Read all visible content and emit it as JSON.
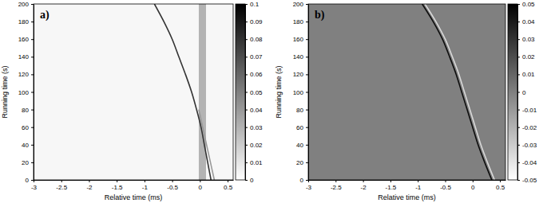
{
  "chart_data": [
    {
      "type": "heatmap",
      "title": "a)",
      "xlabel": "Relative time (ms)",
      "ylabel": "Running time (s)",
      "xlim": [
        -3,
        0.6
      ],
      "xticks": [
        -3,
        -2.5,
        -2,
        -1.5,
        -1,
        -0.5,
        0,
        0.5
      ],
      "ylim": [
        0,
        200
      ],
      "yticks": [
        0,
        20,
        40,
        60,
        80,
        100,
        120,
        140,
        160,
        180,
        200
      ],
      "colorbar": {
        "lim": [
          0,
          0.1
        ],
        "ticks": [
          0,
          0.01,
          0.02,
          0.03,
          0.04,
          0.05,
          0.06,
          0.07,
          0.08,
          0.09,
          0.1
        ]
      },
      "background": 0.003,
      "bands": [
        {
          "x": [
            -0.02,
            0.11
          ],
          "value": 0.03
        }
      ],
      "traces": [
        {
          "y": [
            0,
            20,
            40,
            60,
            80,
            100,
            120,
            140,
            160,
            180,
            200
          ],
          "x": [
            0.2,
            0.14,
            0.08,
            0.02,
            -0.06,
            -0.15,
            -0.26,
            -0.38,
            -0.5,
            -0.65,
            -0.82
          ],
          "value": 0.08
        },
        {
          "y": [
            0,
            20,
            40,
            60,
            80
          ],
          "x": [
            0.26,
            0.19,
            0.12,
            0.05,
            -0.02
          ],
          "value": 0.04
        }
      ]
    },
    {
      "type": "heatmap",
      "title": "b)",
      "xlabel": "Relative time (ms)",
      "ylabel": "Running time (s)",
      "xlim": [
        -3,
        0.6
      ],
      "xticks": [
        -3,
        -2.5,
        -2,
        -1.5,
        -1,
        -0.5,
        0,
        0.5
      ],
      "ylim": [
        0,
        200
      ],
      "yticks": [
        0,
        20,
        40,
        60,
        80,
        100,
        120,
        140,
        160,
        180,
        200
      ],
      "colorbar": {
        "lim": [
          -0.05,
          0.05
        ],
        "ticks": [
          -0.05,
          -0.04,
          -0.03,
          -0.02,
          -0.01,
          0,
          0.01,
          0.02,
          0.03,
          0.04,
          0.05
        ]
      },
      "background": 0,
      "bands": [],
      "traces": [
        {
          "y": [
            0,
            20,
            40,
            60,
            80,
            100,
            120,
            140,
            160,
            180,
            200
          ],
          "x": [
            0.35,
            0.22,
            0.1,
            0.0,
            -0.1,
            -0.2,
            -0.3,
            -0.42,
            -0.55,
            -0.72,
            -0.92
          ],
          "value": 0.045
        },
        {
          "y": [
            0,
            20,
            40,
            60,
            80,
            100,
            120,
            140,
            160,
            180,
            200
          ],
          "x": [
            0.4,
            0.27,
            0.15,
            0.05,
            -0.05,
            -0.15,
            -0.25,
            -0.37,
            -0.5,
            -0.67,
            -0.87
          ],
          "value": -0.035
        }
      ]
    }
  ]
}
